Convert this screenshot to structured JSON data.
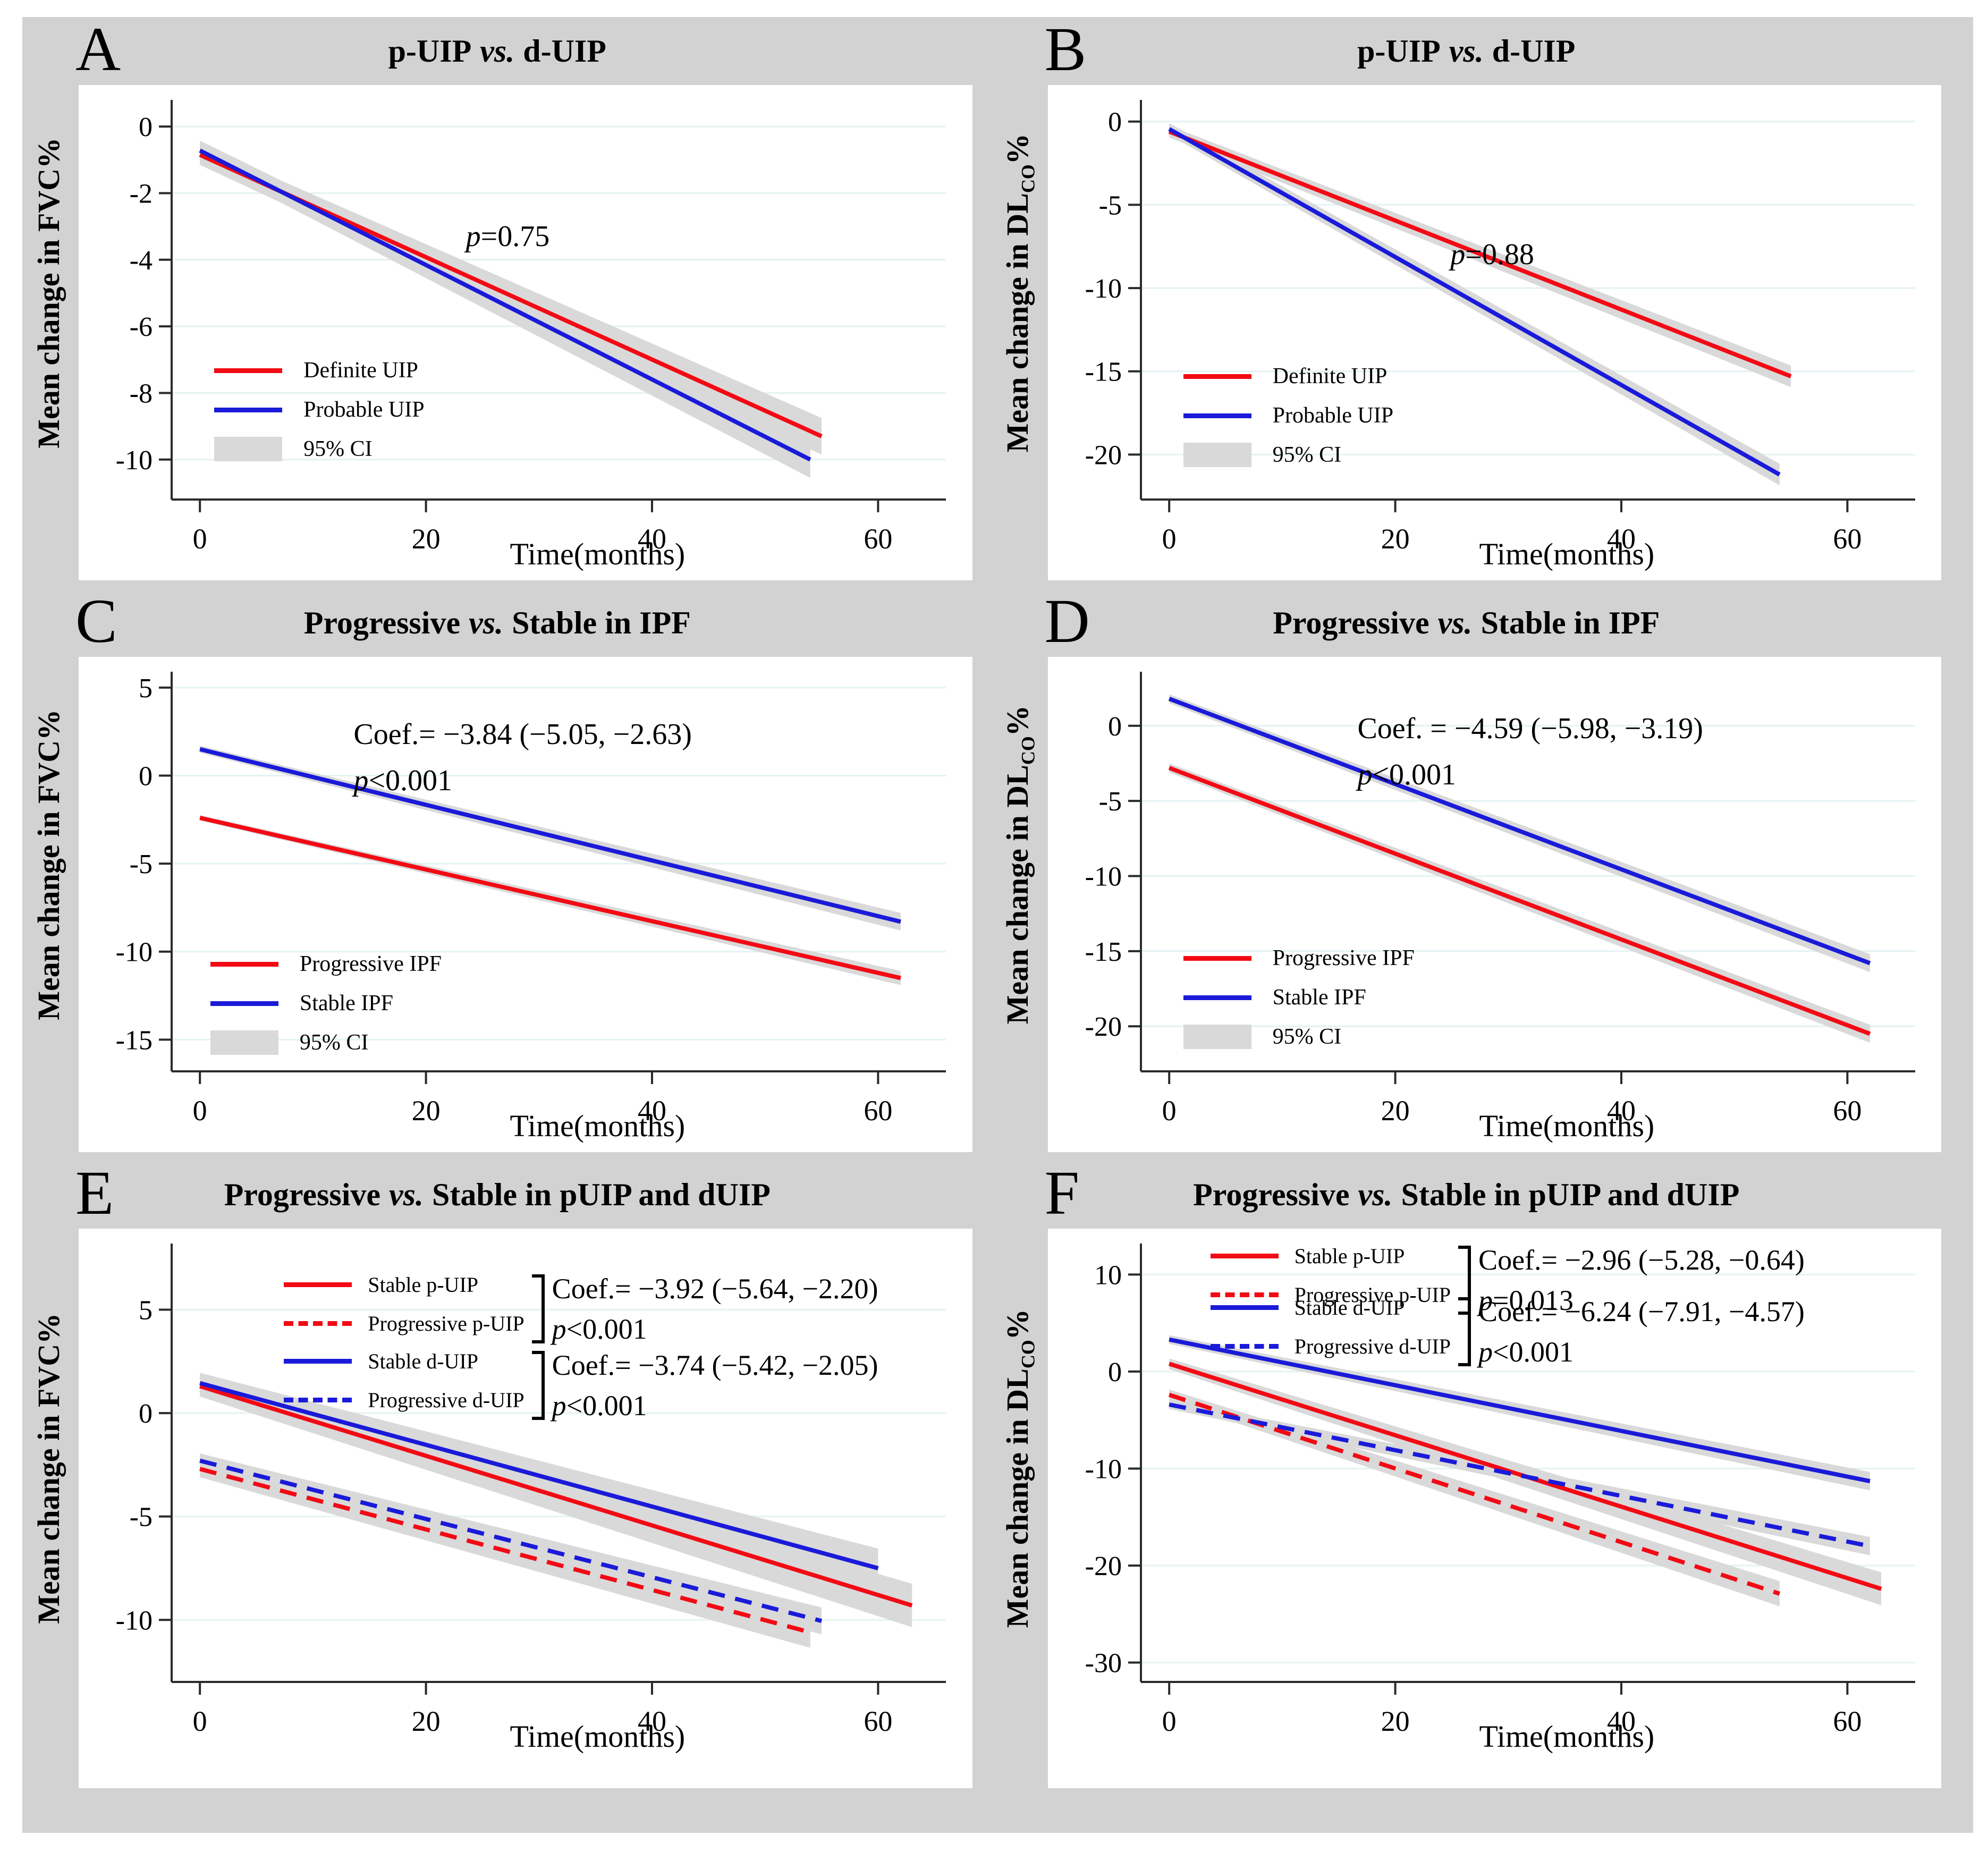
{
  "colors": {
    "red": "#f20a14",
    "blue": "#1a1ad9",
    "ci": "#d9d9d9",
    "grid": "#e4f2f3",
    "axis": "#2a2a2a",
    "outer_bg": "#d2d2d2",
    "panel_bg": "#ffffff",
    "text": "#000000"
  },
  "chart_data": [
    {
      "id": "A",
      "letter": "A",
      "type": "line",
      "title": {
        "pre": "p-UIP",
        "italic": "vs.",
        "post": "d-UIP"
      },
      "xlabel": "Time(months)",
      "ylabel": {
        "pre": "Mean change in FVC%",
        "sub": "",
        "post": ""
      },
      "axes": {
        "xlim": [
          -2.5,
          66
        ],
        "xticks": [
          0,
          20,
          40,
          60
        ],
        "ylim": [
          -11.2,
          0.8
        ],
        "yticks": [
          0,
          -2,
          -4,
          -6,
          -8,
          -10
        ],
        "grid": "horizontal"
      },
      "series": [
        {
          "name": "Definite UIP",
          "color": "red",
          "dash": false,
          "x": [
            0,
            55
          ],
          "y": [
            -0.85,
            -9.3
          ],
          "ci": [
            0.3,
            0.55
          ]
        },
        {
          "name": "Probable UIP",
          "color": "blue",
          "dash": false,
          "x": [
            0,
            54
          ],
          "y": [
            -0.72,
            -10.0
          ],
          "ci": [
            0.3,
            0.55
          ]
        }
      ],
      "legend": {
        "fx": 0.055,
        "fy": 0.645,
        "items": [
          {
            "label": "Definite UIP",
            "swatch": "solid-red"
          },
          {
            "label": "Probable UIP",
            "swatch": "solid-blue"
          },
          {
            "label": "95% CI",
            "swatch": "ci"
          }
        ]
      },
      "annotations": [
        {
          "fx": 0.38,
          "fy": 0.285,
          "lines": [
            {
              "italic": "p",
              "text": "=0.75"
            }
          ]
        }
      ]
    },
    {
      "id": "B",
      "letter": "B",
      "type": "line",
      "title": {
        "pre": "p-UIP",
        "italic": "vs.",
        "post": "d-UIP"
      },
      "xlabel": "Time(months)",
      "ylabel": {
        "pre": "Mean change in DL",
        "sub": "CO",
        "post": "%"
      },
      "axes": {
        "xlim": [
          -2.5,
          66
        ],
        "xticks": [
          0,
          20,
          40,
          60
        ],
        "ylim": [
          -22.7,
          1.3
        ],
        "yticks": [
          0,
          -5,
          -10,
          -15,
          -20
        ],
        "grid": "horizontal"
      },
      "series": [
        {
          "name": "Definite UIP",
          "color": "red",
          "dash": false,
          "x": [
            0,
            55
          ],
          "y": [
            -0.6,
            -15.3
          ],
          "ci": [
            0.35,
            0.65
          ]
        },
        {
          "name": "Probable UIP",
          "color": "blue",
          "dash": false,
          "x": [
            0,
            54
          ],
          "y": [
            -0.45,
            -21.2
          ],
          "ci": [
            0.35,
            0.65
          ]
        }
      ],
      "legend": {
        "fx": 0.055,
        "fy": 0.66,
        "items": [
          {
            "label": "Definite UIP",
            "swatch": "solid-red"
          },
          {
            "label": "Probable UIP",
            "swatch": "solid-blue"
          },
          {
            "label": "95% CI",
            "swatch": "ci"
          }
        ]
      },
      "annotations": [
        {
          "fx": 0.4,
          "fy": 0.33,
          "lines": [
            {
              "italic": "p",
              "text": "=0.88"
            }
          ]
        }
      ]
    },
    {
      "id": "C",
      "letter": "C",
      "type": "line",
      "title": {
        "pre": "Progressive",
        "italic": "vs.",
        "post": "Stable in IPF"
      },
      "xlabel": "Time(months)",
      "ylabel": {
        "pre": "Mean change in FVC%",
        "sub": "",
        "post": ""
      },
      "axes": {
        "xlim": [
          -2.5,
          66
        ],
        "xticks": [
          0,
          20,
          40,
          60
        ],
        "ylim": [
          -16.8,
          5.9
        ],
        "yticks": [
          5,
          0,
          -5,
          -10,
          -15
        ],
        "grid": "horizontal"
      },
      "series": [
        {
          "name": "Stable IPF",
          "color": "blue",
          "dash": false,
          "x": [
            0,
            62
          ],
          "y": [
            1.5,
            -8.3
          ],
          "ci": [
            0.2,
            0.5
          ]
        },
        {
          "name": "Progressive IPF",
          "color": "red",
          "dash": false,
          "x": [
            0,
            62
          ],
          "y": [
            -2.4,
            -11.5
          ],
          "ci": [
            0.15,
            0.4
          ]
        }
      ],
      "legend": {
        "fx": 0.05,
        "fy": 0.7,
        "items": [
          {
            "label": "Progressive IPF",
            "swatch": "solid-red"
          },
          {
            "label": "Stable IPF",
            "swatch": "solid-blue"
          },
          {
            "label": "95% CI",
            "swatch": "ci"
          }
        ]
      },
      "annotations": [
        {
          "fx": 0.235,
          "fy": 0.1,
          "lines": [
            {
              "text": "Coef.= −3.84 (−5.05, −2.63)"
            },
            {
              "italic": "p",
              "text": "<0.001"
            }
          ]
        }
      ]
    },
    {
      "id": "D",
      "letter": "D",
      "type": "line",
      "title": {
        "pre": "Progressive",
        "italic": "vs.",
        "post": "Stable in IPF"
      },
      "xlabel": "Time(months)",
      "ylabel": {
        "pre": "Mean change in DL",
        "sub": "CO",
        "post": "%"
      },
      "axes": {
        "xlim": [
          -2.5,
          66
        ],
        "xticks": [
          0,
          20,
          40,
          60
        ],
        "ylim": [
          -23,
          3.6
        ],
        "yticks": [
          0,
          -5,
          -10,
          -15,
          -20
        ],
        "grid": "horizontal"
      },
      "series": [
        {
          "name": "Stable IPF",
          "color": "blue",
          "dash": false,
          "x": [
            0,
            62
          ],
          "y": [
            1.8,
            -15.8
          ],
          "ci": [
            0.3,
            0.6
          ]
        },
        {
          "name": "Progressive IPF",
          "color": "red",
          "dash": false,
          "x": [
            0,
            62
          ],
          "y": [
            -2.8,
            -20.5
          ],
          "ci": [
            0.3,
            0.6
          ]
        }
      ],
      "legend": {
        "fx": 0.055,
        "fy": 0.685,
        "items": [
          {
            "label": "Progressive IPF",
            "swatch": "solid-red"
          },
          {
            "label": "Stable IPF",
            "swatch": "solid-blue"
          },
          {
            "label": "95% CI",
            "swatch": "ci"
          }
        ]
      },
      "annotations": [
        {
          "fx": 0.28,
          "fy": 0.085,
          "lines": [
            {
              "text": "Coef. = −4.59 (−5.98, −3.19)"
            },
            {
              "italic": "p",
              "text": "<0.001"
            }
          ]
        }
      ]
    },
    {
      "id": "E",
      "letter": "E",
      "type": "line",
      "title": {
        "pre": "Progressive",
        "italic": "vs.",
        "post": "Stable in pUIP and dUIP"
      },
      "xlabel": "Time(months)",
      "ylabel": {
        "pre": "Mean change in FVC%",
        "sub": "",
        "post": ""
      },
      "axes": {
        "xlim": [
          -2.5,
          66
        ],
        "xticks": [
          0,
          20,
          40,
          60
        ],
        "ylim": [
          -13,
          8.2
        ],
        "yticks": [
          5,
          0,
          -5,
          -10
        ],
        "grid": "horizontal"
      },
      "series": [
        {
          "name": "Stable p-UIP",
          "color": "red",
          "dash": false,
          "x": [
            0,
            63
          ],
          "y": [
            1.3,
            -9.3
          ],
          "ci": [
            0.5,
            1.05
          ]
        },
        {
          "name": "Stable d-UIP",
          "color": "blue",
          "dash": false,
          "x": [
            0,
            60
          ],
          "y": [
            1.45,
            -7.5
          ],
          "ci": [
            0.5,
            0.95
          ]
        },
        {
          "name": "Progressive d-UIP",
          "color": "blue",
          "dash": true,
          "x": [
            0,
            55
          ],
          "y": [
            -2.3,
            -10.05
          ],
          "ci": [
            0.35,
            0.65
          ]
        },
        {
          "name": "Progressive p-UIP",
          "color": "red",
          "dash": true,
          "x": [
            0,
            54
          ],
          "y": [
            -2.7,
            -10.6
          ],
          "ci": [
            0.4,
            0.75
          ]
        }
      ],
      "groups": [
        {
          "fx": 0.145,
          "fy": 0.065,
          "rows": [
            {
              "label": "Stable p-UIP",
              "swatch": "solid-red"
            },
            {
              "label": "Progressive p-UIP",
              "swatch": "dash-red"
            }
          ],
          "coef": "Coef.= −3.92 (−5.64, −2.20)",
          "p": {
            "italic": "p",
            "text": "<0.001"
          }
        },
        {
          "fx": 0.145,
          "fy": 0.24,
          "rows": [
            {
              "label": "Stable d-UIP",
              "swatch": "solid-blue"
            },
            {
              "label": "Progressive d-UIP",
              "swatch": "dash-blue"
            }
          ],
          "coef": "Coef.= −3.74 (−5.42, −2.05)",
          "p": {
            "italic": "p",
            "text": "<0.001"
          }
        }
      ],
      "annotations": []
    },
    {
      "id": "F",
      "letter": "F",
      "type": "line",
      "title": {
        "pre": "Progressive",
        "italic": "vs.",
        "post": "Stable in pUIP and dUIP"
      },
      "xlabel": "Time(months)",
      "ylabel": {
        "pre": "Mean change in DL",
        "sub": "CO",
        "post": "%"
      },
      "axes": {
        "xlim": [
          -2.5,
          66
        ],
        "xticks": [
          0,
          20,
          40,
          60
        ],
        "ylim": [
          -32,
          13.2
        ],
        "yticks": [
          10,
          0,
          -10,
          -20,
          -30
        ],
        "grid": "horizontal"
      },
      "series": [
        {
          "name": "Stable d-UIP",
          "color": "blue",
          "dash": false,
          "x": [
            0,
            62
          ],
          "y": [
            3.3,
            -11.3
          ],
          "ci": [
            0.45,
            0.95
          ]
        },
        {
          "name": "Stable p-UIP",
          "color": "red",
          "dash": false,
          "x": [
            0,
            63
          ],
          "y": [
            0.8,
            -22.4
          ],
          "ci": [
            0.55,
            1.7
          ]
        },
        {
          "name": "Progressive p-UIP",
          "color": "red",
          "dash": true,
          "x": [
            0,
            54
          ],
          "y": [
            -2.4,
            -22.9
          ],
          "ci": [
            0.55,
            1.3
          ]
        },
        {
          "name": "Progressive d-UIP",
          "color": "blue",
          "dash": true,
          "x": [
            0,
            62
          ],
          "y": [
            -3.4,
            -18.0
          ],
          "ci": [
            0.45,
            0.95
          ]
        }
      ],
      "groups": [
        {
          "fx": 0.09,
          "fy": 0.0,
          "rows": [
            {
              "label": "Stable p-UIP",
              "swatch": "solid-red"
            },
            {
              "label": "Progressive p-UIP",
              "swatch": "dash-red"
            }
          ],
          "coef": "Coef.= −2.96 (−5.28, −0.64)",
          "p": {
            "italic": "p",
            "text": "=0.013"
          }
        },
        {
          "fx": 0.09,
          "fy": 0.118,
          "rows": [
            {
              "label": "Stable d-UIP",
              "swatch": "solid-blue"
            },
            {
              "label": "Progressive d-UIP",
              "swatch": "dash-blue"
            }
          ],
          "coef": "Coef.= −6.24 (−7.91, −4.57)",
          "p": {
            "italic": "p",
            "text": "<0.001"
          }
        }
      ],
      "annotations": []
    }
  ]
}
